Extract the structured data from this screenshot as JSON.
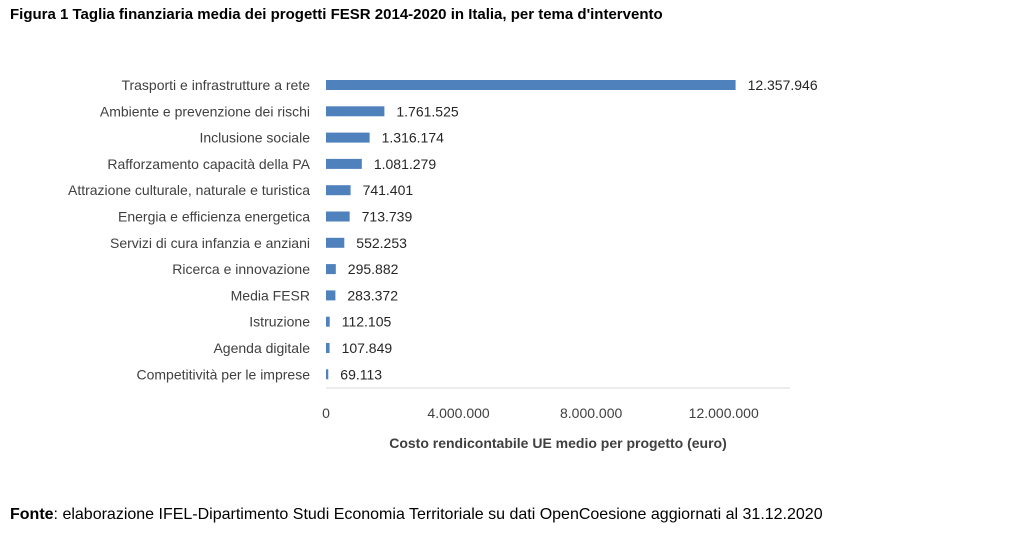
{
  "chart_data": {
    "type": "bar",
    "orientation": "horizontal",
    "title": "Figura 1 Taglia finanziaria media dei progetti FESR 2014-2020 in Italia, per tema d'intervento",
    "xlabel": "Costo rendicontabile UE medio per progetto (euro)",
    "ylabel": "",
    "categories": [
      "Trasporti e infrastrutture a rete",
      "Ambiente e prevenzione dei rischi",
      "Inclusione sociale",
      "Rafforzamento capacità della PA",
      "Attrazione culturale, naturale e turistica",
      "Energia e efficienza energetica",
      "Servizi di cura infanzia e anziani",
      "Ricerca e innovazione",
      "Media FESR",
      "Istruzione",
      "Agenda digitale",
      "Competitività per le imprese"
    ],
    "values": [
      12357946,
      1761525,
      1316174,
      1081279,
      741401,
      713739,
      552253,
      295882,
      283372,
      112105,
      107849,
      69113
    ],
    "value_labels": [
      "12.357.946",
      "1.761.525",
      "1.316.174",
      "1.081.279",
      "741.401",
      "713.739",
      "552.253",
      "295.882",
      "283.372",
      "112.105",
      "107.849",
      "69.113"
    ],
    "xlim": [
      0,
      14000000
    ],
    "xticks": [
      0,
      4000000,
      8000000,
      12000000
    ],
    "xtick_labels": [
      "0",
      "4.000.000",
      "8.000.000",
      "12.000.000"
    ],
    "bar_color": "#4f81bd",
    "grid": false
  },
  "source": {
    "label": "Fonte",
    "text": ": elaborazione IFEL-Dipartimento Studi Economia Territoriale su dati OpenCoesione aggiornati al 31.12.2020"
  }
}
